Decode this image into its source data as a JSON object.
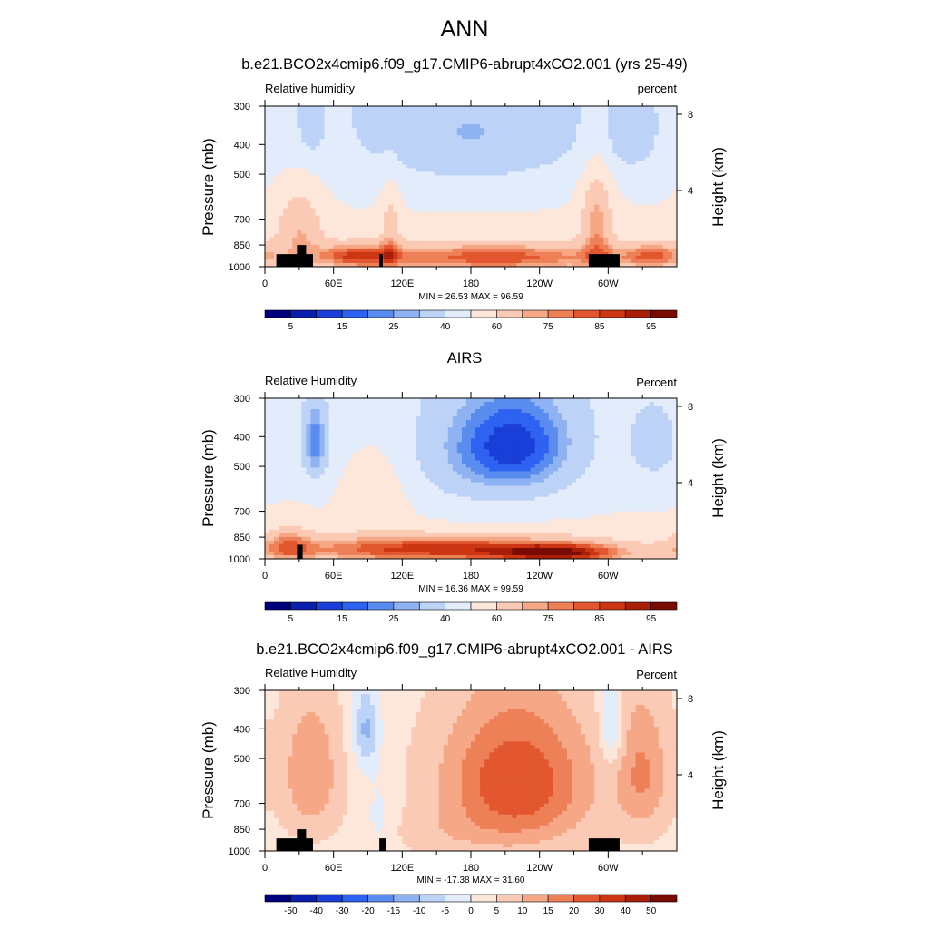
{
  "title": "ANN",
  "colors": {
    "abs_levels": [
      "#00007f",
      "#0b1fae",
      "#1a3fd8",
      "#2e62f0",
      "#5a8cf0",
      "#8fb2f3",
      "#bcd2f6",
      "#e3ecfb",
      "#fde6da",
      "#fbcab5",
      "#f6a886",
      "#ee8058",
      "#e2572f",
      "#cc3613",
      "#a81e08",
      "#7a0b04"
    ],
    "diff_levels": [
      "#00007f",
      "#0b1fae",
      "#1a3fd8",
      "#2e62f0",
      "#5a8cf0",
      "#8fb2f3",
      "#bcd2f6",
      "#e3ecfb",
      "#fde6da",
      "#fbcab5",
      "#f6a886",
      "#ee8058",
      "#e2572f",
      "#cc3613",
      "#a81e08",
      "#7a0b04"
    ],
    "land": "#000000"
  },
  "chart_data": [
    {
      "type": "heatmap",
      "title": "b.e21.BCO2x4cmip6.f09_g17.CMIP6-abrupt4xCO2.001 (yrs 25-49)",
      "left_label": "Relative humidity",
      "right_label": "percent",
      "ylabel": "Pressure (mb)",
      "ylabel_right": "Height (km)",
      "x_ticks": [
        "0",
        "60E",
        "120E",
        "180",
        "120W",
        "60W"
      ],
      "x_tick_values": [
        0,
        60,
        120,
        180,
        240,
        300
      ],
      "xlim": [
        0,
        360
      ],
      "y_ticks": [
        "300",
        "400",
        "500",
        "700",
        "850",
        "1000"
      ],
      "y_tick_values": [
        300,
        400,
        500,
        700,
        850,
        1000
      ],
      "ylim": [
        1000,
        300
      ],
      "y_scale": "log",
      "height_ticks": [
        "8",
        "4"
      ],
      "height_tick_values": [
        8,
        4
      ],
      "min_text": "MIN =  26.53  MAX =  96.59",
      "colorbar_labels": [
        "5",
        "15",
        "25",
        "40",
        "60",
        "75",
        "85",
        "95"
      ],
      "fields": {
        "base": 54,
        "upper_decrease": -10,
        "features": [
          {
            "lon": 40,
            "p": 350,
            "dlon": 8,
            "dp": 60,
            "amp": -10
          },
          {
            "lon": 180,
            "p": 380,
            "dlon": 70,
            "dp": 110,
            "amp": -16
          },
          {
            "lon": 320,
            "p": 380,
            "dlon": 18,
            "dp": 80,
            "amp": -10
          },
          {
            "lon": 30,
            "p": 760,
            "dlon": 15,
            "dp": 160,
            "amp": 18
          },
          {
            "lon": 290,
            "p": 720,
            "dlon": 10,
            "dp": 220,
            "amp": 22
          },
          {
            "lon": 110,
            "p": 760,
            "dlon": 6,
            "dp": 180,
            "amp": 14
          },
          {
            "lon": 200,
            "p": 930,
            "dlon": 80,
            "dp": 70,
            "amp": 30
          },
          {
            "lon": 80,
            "p": 920,
            "dlon": 25,
            "dp": 60,
            "amp": 26
          },
          {
            "lon": 340,
            "p": 920,
            "dlon": 20,
            "dp": 60,
            "amp": 24
          }
        ]
      },
      "land_masks": [
        {
          "lon0": 10,
          "lon1": 42,
          "p_top": 910
        },
        {
          "lon0": 28,
          "lon1": 36,
          "p_top": 850
        },
        {
          "lon0": 100,
          "lon1": 103,
          "p_top": 910
        },
        {
          "lon0": 283,
          "lon1": 310,
          "p_top": 910
        }
      ]
    },
    {
      "type": "heatmap",
      "title": "AIRS",
      "left_label": "Relative Humidity",
      "right_label": "Percent",
      "ylabel": "Pressure (mb)",
      "ylabel_right": "Height (km)",
      "x_ticks": [
        "0",
        "60E",
        "120E",
        "180",
        "120W",
        "60W"
      ],
      "x_tick_values": [
        0,
        60,
        120,
        180,
        240,
        300
      ],
      "xlim": [
        0,
        360
      ],
      "y_ticks": [
        "300",
        "400",
        "500",
        "700",
        "850",
        "1000"
      ],
      "y_tick_values": [
        300,
        400,
        500,
        700,
        850,
        1000
      ],
      "ylim": [
        1000,
        300
      ],
      "y_scale": "log",
      "height_ticks": [
        "8",
        "4"
      ],
      "height_tick_values": [
        8,
        4
      ],
      "min_text": "MIN =  16.36  MAX =  99.59",
      "colorbar_labels": [
        "5",
        "15",
        "25",
        "40",
        "60",
        "75",
        "85",
        "95"
      ],
      "fields": {
        "base": 52,
        "upper_decrease": -6,
        "features": [
          {
            "lon": 44,
            "p": 420,
            "dlon": 8,
            "dp": 90,
            "amp": -28
          },
          {
            "lon": 220,
            "p": 430,
            "dlon": 40,
            "dp": 130,
            "amp": -34
          },
          {
            "lon": 160,
            "p": 470,
            "dlon": 40,
            "dp": 150,
            "amp": -8
          },
          {
            "lon": 340,
            "p": 430,
            "dlon": 18,
            "dp": 100,
            "amp": -12
          },
          {
            "lon": 150,
            "p": 930,
            "dlon": 100,
            "dp": 70,
            "amp": 36
          },
          {
            "lon": 260,
            "p": 960,
            "dlon": 40,
            "dp": 50,
            "amp": 30
          },
          {
            "lon": 20,
            "p": 900,
            "dlon": 15,
            "dp": 90,
            "amp": 18
          },
          {
            "lon": 100,
            "p": 600,
            "dlon": 20,
            "dp": 160,
            "amp": 8
          }
        ]
      },
      "land_masks": [
        {
          "lon0": 28,
          "lon1": 33,
          "p_top": 900
        }
      ]
    },
    {
      "type": "heatmap",
      "title": "b.e21.BCO2x4cmip6.f09_g17.CMIP6-abrupt4xCO2.001 - AIRS",
      "left_label": "Relative Humidity",
      "right_label": "Percent",
      "ylabel": "Pressure (mb)",
      "ylabel_right": "Height (km)",
      "x_ticks": [
        "0",
        "60E",
        "120E",
        "180",
        "120W",
        "60W"
      ],
      "x_tick_values": [
        0,
        60,
        120,
        180,
        240,
        300
      ],
      "xlim": [
        0,
        360
      ],
      "y_ticks": [
        "300",
        "400",
        "500",
        "700",
        "850",
        "1000"
      ],
      "y_tick_values": [
        300,
        400,
        500,
        700,
        850,
        1000
      ],
      "ylim": [
        1000,
        300
      ],
      "y_scale": "log",
      "height_ticks": [
        "8",
        "4"
      ],
      "height_tick_values": [
        8,
        4
      ],
      "min_text": "MIN = -17.38  MAX =  31.60",
      "colorbar_labels": [
        "-50",
        "-40",
        "-30",
        "-20",
        "-15",
        "-10",
        "-5",
        "0",
        "5",
        "10",
        "15",
        "20",
        "30",
        "40",
        "50"
      ],
      "fields": {
        "base": 3,
        "upper_decrease": 0,
        "features": [
          {
            "lon": 220,
            "p": 600,
            "dlon": 45,
            "dp": 230,
            "amp": 22
          },
          {
            "lon": 40,
            "p": 560,
            "dlon": 18,
            "dp": 200,
            "amp": 12
          },
          {
            "lon": 330,
            "p": 560,
            "dlon": 16,
            "dp": 200,
            "amp": 12
          },
          {
            "lon": 88,
            "p": 400,
            "dlon": 8,
            "dp": 90,
            "amp": -14
          },
          {
            "lon": 303,
            "p": 390,
            "dlon": 7,
            "dp": 90,
            "amp": -12
          },
          {
            "lon": 100,
            "p": 800,
            "dlon": 10,
            "dp": 200,
            "amp": -5
          },
          {
            "lon": 150,
            "p": 880,
            "dlon": 40,
            "dp": 100,
            "amp": 3
          }
        ]
      },
      "land_masks": [
        {
          "lon0": 10,
          "lon1": 42,
          "p_top": 910
        },
        {
          "lon0": 28,
          "lon1": 36,
          "p_top": 850
        },
        {
          "lon0": 100,
          "lon1": 106,
          "p_top": 910
        },
        {
          "lon0": 283,
          "lon1": 310,
          "p_top": 910
        }
      ],
      "diff": true
    }
  ]
}
